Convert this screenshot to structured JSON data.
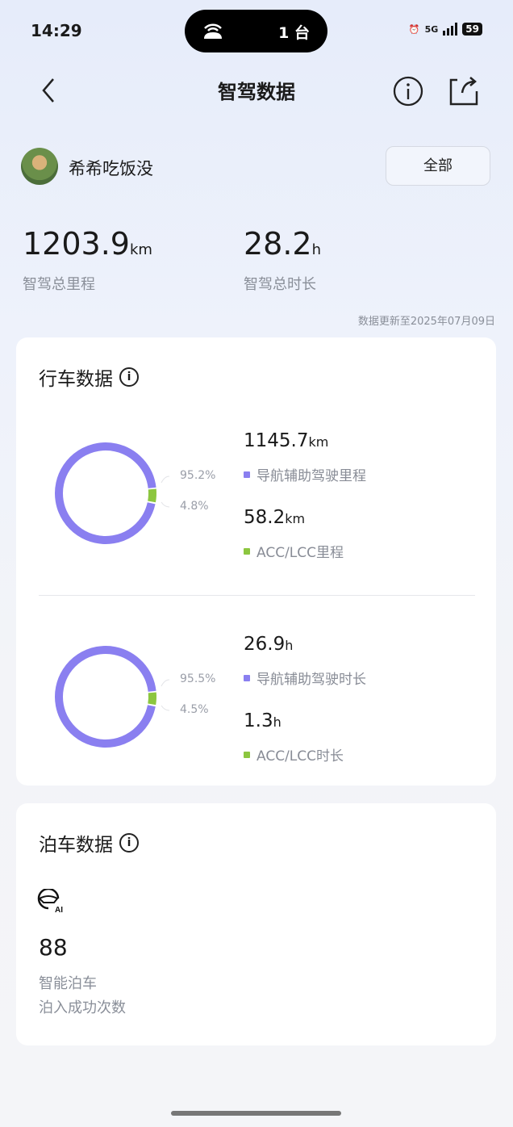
{
  "status": {
    "time": "14:29",
    "island_count": "1 台",
    "network": "5G",
    "battery": "59"
  },
  "header": {
    "title": "智驾数据",
    "back_icon": "chevron-left-icon",
    "info_icon": "info-icon",
    "share_icon": "share-icon"
  },
  "user": {
    "name": "希希吃饭没",
    "filter_label": "全部"
  },
  "summary": {
    "distance_value": "1203.9",
    "distance_unit": "km",
    "distance_label": "智驾总里程",
    "duration_value": "28.2",
    "duration_unit": "h",
    "duration_label": "智驾总时长",
    "updated": "数据更新至2025年07月09日"
  },
  "colors": {
    "nav": "#8a7ff0",
    "acc": "#8cc63f"
  },
  "driving": {
    "title": "行车数据",
    "mileage": {
      "nav_pct": 95.2,
      "acc_pct": 4.8,
      "nav_pct_label": "95.2%",
      "acc_pct_label": "4.8%",
      "nav_value": "1145.7",
      "nav_unit": "km",
      "nav_label": "导航辅助驾驶里程",
      "acc_value": "58.2",
      "acc_unit": "km",
      "acc_label": "ACC/LCC里程"
    },
    "duration": {
      "nav_pct": 95.5,
      "acc_pct": 4.5,
      "nav_pct_label": "95.5%",
      "acc_pct_label": "4.5%",
      "nav_value": "26.9",
      "nav_unit": "h",
      "nav_label": "导航辅助驾驶时长",
      "acc_value": "1.3",
      "acc_unit": "h",
      "acc_label": "ACC/LCC时长"
    }
  },
  "parking": {
    "title": "泊车数据",
    "icon": "ai-steering-wheel-icon",
    "icon_text": "AI",
    "count": "88",
    "label1": "智能泊车",
    "label2": "泊入成功次数"
  }
}
